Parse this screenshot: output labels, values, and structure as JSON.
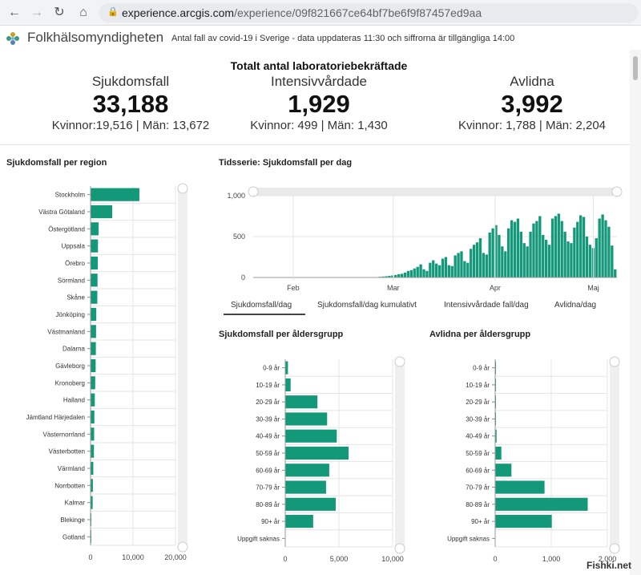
{
  "browser": {
    "url_host": "experience.arcgis.com",
    "url_path": "/experience/09f821667ce64bf7be6f9f87457ed9aa"
  },
  "app": {
    "org": "Folkhälsomyndigheten",
    "subtitle": "Antal fall av covid-19 i Sverige - data uppdateras 11:30 och siffrorna är tillgängliga 14:00"
  },
  "stats": {
    "title": "Totalt antal laboratoriebekräftade",
    "cases": {
      "label": "Sjukdomsfall",
      "value": "33,188",
      "sub": "Kvinnor:19,516 | Män: 13,672"
    },
    "icu": {
      "label": "Intensivvårdade",
      "value": "1,929",
      "sub": "Kvinnor: 499 | Män: 1,430"
    },
    "deaths": {
      "label": "Avlidna",
      "value": "3,992",
      "sub": "Kvinnor: 1,788 | Män: 2,204"
    }
  },
  "tabs": [
    "Sjukdomsfall/dag",
    "Sjukdomsfall/dag kumulativt",
    "Intensivvårdade fall/dag",
    "Avlidna/dag"
  ],
  "watermark": "Fishki.net",
  "colors": {
    "bar": "#14987a",
    "grid": "#e4e4e4",
    "axis": "#bbbbbb"
  },
  "chart_data": [
    {
      "type": "bar",
      "orientation": "horizontal",
      "title": "Sjukdomsfall per region",
      "categories": [
        "Stockholm",
        "Västra Götaland",
        "Östergötland",
        "Uppsala",
        "Örebro",
        "Sörmland",
        "Skåne",
        "Jönköping",
        "Västmanland",
        "Dalarna",
        "Gävleborg",
        "Kronoberg",
        "Halland",
        "Jämtland Härjedalen",
        "Västernorrland",
        "Västerbotten",
        "Värmland",
        "Norrbotten",
        "Kalmar",
        "Blekinge",
        "Gotland"
      ],
      "values": [
        11500,
        5100,
        1900,
        1750,
        1700,
        1650,
        1600,
        1350,
        1300,
        1250,
        1200,
        1100,
        1000,
        900,
        850,
        800,
        650,
        550,
        500,
        150,
        100
      ],
      "xlim": [
        0,
        20000
      ],
      "xticks": [
        "0",
        "10,000",
        "20,000"
      ]
    },
    {
      "type": "bar",
      "title": "Tidsserie: Sjukdomsfall per dag",
      "yticks": [
        "0",
        "500",
        "1,000"
      ],
      "ylim": [
        0,
        1000
      ],
      "month_labels": [
        "Feb",
        "Mar",
        "Apr",
        "Maj"
      ],
      "values": [
        0,
        1,
        0,
        0,
        0,
        0,
        0,
        1,
        0,
        0,
        0,
        0,
        0,
        0,
        0,
        0,
        0,
        0,
        0,
        0,
        0,
        0,
        0,
        0,
        0,
        0,
        0,
        0,
        0,
        0,
        0,
        0,
        0,
        0,
        0,
        1,
        1,
        2,
        3,
        5,
        8,
        12,
        15,
        20,
        25,
        30,
        40,
        45,
        60,
        80,
        90,
        110,
        130,
        160,
        100,
        80,
        180,
        210,
        170,
        150,
        230,
        250,
        150,
        140,
        270,
        300,
        320,
        200,
        180,
        350,
        400,
        430,
        480,
        300,
        280,
        550,
        600,
        640,
        520,
        380,
        320,
        600,
        700,
        680,
        720,
        560,
        420,
        380,
        560,
        660,
        690,
        750,
        520,
        460,
        400,
        720,
        750,
        780,
        690,
        560,
        440,
        420,
        610,
        680,
        760,
        740,
        500,
        400,
        360,
        480,
        720,
        770,
        700,
        620,
        390,
        100
      ]
    },
    {
      "type": "bar",
      "orientation": "horizontal",
      "title": "Sjukdomsfall per åldersgrupp",
      "categories": [
        "0-9 år",
        "10-19 år",
        "20-29 år",
        "30-39 år",
        "40-49 år",
        "50-59 år",
        "60-69 år",
        "70-79 år",
        "80-89 år",
        "90+ år",
        "Uppgift saknas"
      ],
      "values": [
        250,
        500,
        3000,
        3900,
        4800,
        5900,
        4100,
        3800,
        4700,
        2600,
        0
      ],
      "xlim": [
        0,
        10000
      ],
      "xticks": [
        "0",
        "5,000",
        "10,000"
      ]
    },
    {
      "type": "bar",
      "orientation": "horizontal",
      "title": "Avlidna per åldersgrupp",
      "categories": [
        "0-9 år",
        "10-19 år",
        "20-29 år",
        "30-39 år",
        "40-49 år",
        "50-59 år",
        "60-69 år",
        "70-79 år",
        "80-89 år",
        "90+ år",
        "Uppgift saknas"
      ],
      "values": [
        1,
        2,
        5,
        10,
        25,
        110,
        290,
        880,
        1650,
        1010,
        0
      ],
      "xlim": [
        0,
        2000
      ],
      "xticks": [
        "0",
        "1,000",
        "2,000"
      ]
    }
  ]
}
